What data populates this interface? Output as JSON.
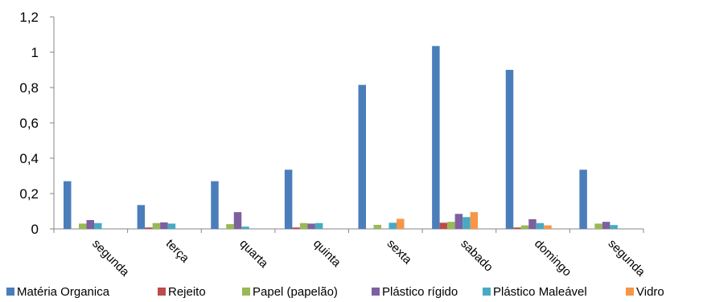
{
  "chart_data": {
    "type": "bar",
    "categories": [
      "segunda",
      "terça",
      "quarta",
      "quinta",
      "sexta",
      "sabado",
      "domingo",
      "segunda"
    ],
    "series": [
      {
        "name": "Matéria Organica",
        "color": "#4a7ebb",
        "values": [
          0.27,
          0.135,
          0.27,
          0.335,
          0.815,
          1.035,
          0.9,
          0.335
        ]
      },
      {
        "name": "Rejeito",
        "color": "#be4b48",
        "values": [
          0,
          0.008,
          0,
          0.008,
          0,
          0.035,
          0.008,
          0
        ]
      },
      {
        "name": "Papel (papelão)",
        "color": "#98b954",
        "values": [
          0.03,
          0.033,
          0.027,
          0.033,
          0.023,
          0.04,
          0.02,
          0.03
        ]
      },
      {
        "name": "Plástico rígido",
        "color": "#7d60a0",
        "values": [
          0.05,
          0.037,
          0.095,
          0.03,
          0,
          0.085,
          0.055,
          0.04
        ]
      },
      {
        "name": "Plástico Maleável",
        "color": "#46aac5",
        "values": [
          0.033,
          0.03,
          0.013,
          0.033,
          0.035,
          0.067,
          0.033,
          0.022
        ]
      },
      {
        "name": "Vidro",
        "color": "#f79646",
        "values": [
          0,
          0,
          0,
          0,
          0.057,
          0.095,
          0.02,
          0
        ]
      }
    ],
    "yticks": [
      "0",
      "0,2",
      "0,4",
      "0,6",
      "0,8",
      "1",
      "1,2"
    ],
    "ylim": [
      0,
      1.2
    ],
    "grid": false,
    "legend_position": "bottom"
  }
}
